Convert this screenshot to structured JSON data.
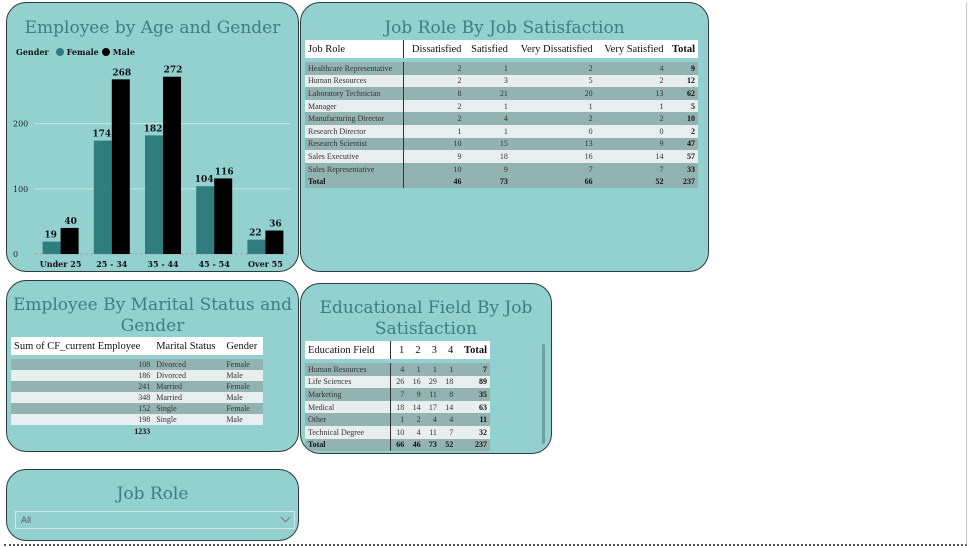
{
  "age_gender": {
    "title": "Employee by Age and Gender",
    "legend_label": "Gender",
    "colors": {
      "Female": "#2f7d7f",
      "Male": "#000000"
    }
  },
  "chart_data": {
    "type": "bar",
    "title": "Employee by Age and Gender",
    "categories": [
      "Under 25",
      "25 - 34",
      "35 - 44",
      "45 - 54",
      "Over 55"
    ],
    "series": [
      {
        "name": "Female",
        "values": [
          19,
          174,
          182,
          104,
          22
        ]
      },
      {
        "name": "Male",
        "values": [
          40,
          268,
          272,
          116,
          36
        ]
      }
    ],
    "yticks": [
      "0",
      "100",
      "200"
    ],
    "ylim": [
      0,
      290
    ],
    "grid": true,
    "legend": "top-left"
  },
  "job_role": {
    "title": "Job Role By Job Satisfaction",
    "columns": [
      "Job Role",
      "Dissatisfied",
      "Satisfied",
      "Very Dissatisfied",
      "Very Satisfied",
      "Total"
    ],
    "rows": [
      [
        "Healthcare Representative",
        "2",
        "1",
        "2",
        "4",
        "9"
      ],
      [
        "Human Resources",
        "2",
        "3",
        "5",
        "2",
        "12"
      ],
      [
        "Laboratory Technician",
        "8",
        "21",
        "20",
        "13",
        "62"
      ],
      [
        "Manager",
        "2",
        "1",
        "1",
        "1",
        "5"
      ],
      [
        "Manufacturing Director",
        "2",
        "4",
        "2",
        "2",
        "10"
      ],
      [
        "Research Director",
        "1",
        "1",
        "0",
        "0",
        "2"
      ],
      [
        "Research Scientist",
        "10",
        "15",
        "13",
        "9",
        "47"
      ],
      [
        "Sales Executive",
        "9",
        "18",
        "16",
        "14",
        "57"
      ],
      [
        "Sales Representative",
        "10",
        "9",
        "7",
        "7",
        "33"
      ]
    ],
    "total": [
      "Total",
      "46",
      "73",
      "66",
      "52",
      "237"
    ]
  },
  "marital": {
    "title_line1": "Employee By Marital Status and",
    "title_line2": "Gender",
    "columns": [
      "Sum of CF_current Employee",
      "Marital Status",
      "Gender"
    ],
    "rows": [
      [
        "108",
        "Divorced",
        "Female"
      ],
      [
        "186",
        "Divorced",
        "Male"
      ],
      [
        "241",
        "Married",
        "Female"
      ],
      [
        "348",
        "Married",
        "Male"
      ],
      [
        "152",
        "Single",
        "Female"
      ],
      [
        "198",
        "Single",
        "Male"
      ]
    ],
    "total": "1233"
  },
  "education": {
    "title_line1": "Educational Field By Job",
    "title_line2": "Satisfaction",
    "columns": [
      "Education Field",
      "1",
      "2",
      "3",
      "4",
      "Total"
    ],
    "rows": [
      [
        "Human Resources",
        "4",
        "1",
        "1",
        "1",
        "7"
      ],
      [
        "Life Sciences",
        "26",
        "16",
        "29",
        "18",
        "89"
      ],
      [
        "Marketing",
        "7",
        "9",
        "11",
        "8",
        "35"
      ],
      [
        "Medical",
        "18",
        "14",
        "17",
        "14",
        "63"
      ],
      [
        "Other",
        "1",
        "2",
        "4",
        "4",
        "11"
      ],
      [
        "Technical Degree",
        "10",
        "4",
        "11",
        "7",
        "32"
      ]
    ],
    "total": [
      "Total",
      "66",
      "46",
      "73",
      "52",
      "237"
    ]
  },
  "slicer": {
    "title": "Job Role",
    "selected": "All"
  }
}
